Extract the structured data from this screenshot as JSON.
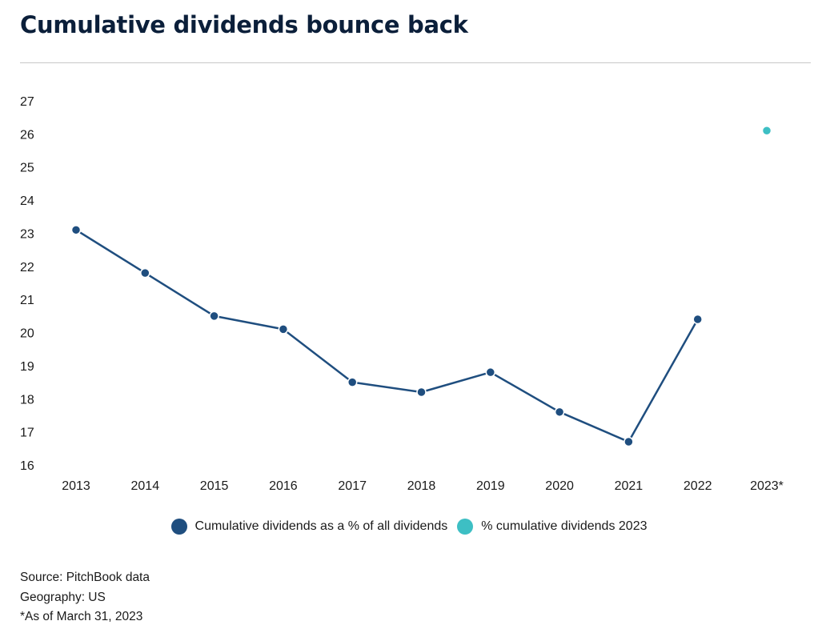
{
  "header": {
    "title": "Cumulative dividends bounce back"
  },
  "colors": {
    "series_main": "#1f4e7f",
    "series_2023": "#3dbfc4",
    "divider": "#c8c8c8"
  },
  "chart_data": {
    "type": "line",
    "title": "Cumulative dividends bounce back",
    "xlabel": "",
    "ylabel": "",
    "ylim": [
      16,
      27
    ],
    "yticks": [
      16,
      17,
      18,
      19,
      20,
      21,
      22,
      23,
      24,
      25,
      26,
      27
    ],
    "categories": [
      "2013",
      "2014",
      "2015",
      "2016",
      "2017",
      "2018",
      "2019",
      "2020",
      "2021",
      "2022",
      "2023*"
    ],
    "series": [
      {
        "name": "Cumulative dividends as a % of all dividends",
        "color": "#1f4e7f",
        "values": [
          23.1,
          21.8,
          20.5,
          20.1,
          18.5,
          18.2,
          18.8,
          17.6,
          16.7,
          20.4,
          null
        ]
      },
      {
        "name": "% cumulative dividends 2023",
        "color": "#3dbfc4",
        "values": [
          null,
          null,
          null,
          null,
          null,
          null,
          null,
          null,
          null,
          null,
          26.1
        ]
      }
    ],
    "grid": false,
    "legend_position": "bottom-center"
  },
  "footnotes": {
    "source": "Source: PitchBook data",
    "geography": "Geography: US",
    "asof": "*As of March 31, 2023"
  }
}
